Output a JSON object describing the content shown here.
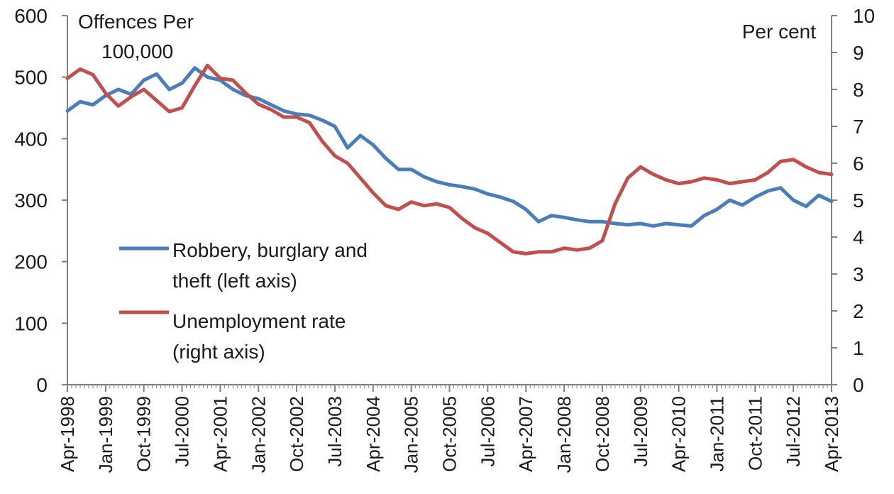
{
  "chart_data": {
    "type": "line",
    "left_axis": {
      "ylim": [
        0,
        600
      ],
      "ticks": [
        "0",
        "100",
        "200",
        "300",
        "400",
        "500",
        "600"
      ],
      "title_line1": "Offences Per",
      "title_line2": "100,000"
    },
    "right_axis": {
      "ylim": [
        0,
        10
      ],
      "ticks": [
        "0",
        "1",
        "2",
        "3",
        "4",
        "5",
        "6",
        "7",
        "8",
        "9",
        "10"
      ],
      "title": "Per cent"
    },
    "x_tick_labels": [
      "Apr-1998",
      "Jan-1999",
      "Oct-1999",
      "Jul-2000",
      "Apr-2001",
      "Jan-2002",
      "Oct-2002",
      "Jul-2003",
      "Apr-2004",
      "Jan-2005",
      "Oct-2005",
      "Jul-2006",
      "Apr-2007",
      "Jan-2008",
      "Oct-2008",
      "Jul-2009",
      "Apr-2010",
      "Jan-2011",
      "Oct-2011",
      "Jul-2012",
      "Apr-2013"
    ],
    "grid": false,
    "legend_position": "left",
    "series": [
      {
        "name_line1": "Robbery, burglary and",
        "name_line2": "theft (left axis)",
        "axis": "left",
        "color": "#4a7ebb",
        "x": [
          "1998-04",
          "1998-07",
          "1998-10",
          "1999-01",
          "1999-04",
          "1999-07",
          "1999-10",
          "2000-01",
          "2000-04",
          "2000-07",
          "2000-10",
          "2001-01",
          "2001-04",
          "2001-07",
          "2001-10",
          "2002-01",
          "2002-04",
          "2002-07",
          "2002-10",
          "2003-01",
          "2003-04",
          "2003-07",
          "2003-10",
          "2004-01",
          "2004-04",
          "2004-07",
          "2004-10",
          "2005-01",
          "2005-04",
          "2005-07",
          "2005-10",
          "2006-01",
          "2006-04",
          "2006-07",
          "2006-10",
          "2007-01",
          "2007-04",
          "2007-07",
          "2007-10",
          "2008-01",
          "2008-04",
          "2008-07",
          "2008-10",
          "2009-01",
          "2009-04",
          "2009-07",
          "2009-10",
          "2010-01",
          "2010-04",
          "2010-07",
          "2010-10",
          "2011-01",
          "2011-04",
          "2011-07",
          "2011-10",
          "2012-01",
          "2012-04",
          "2012-07",
          "2012-10",
          "2013-01",
          "2013-04"
        ],
        "values": [
          445,
          460,
          455,
          470,
          480,
          472,
          495,
          505,
          480,
          490,
          515,
          500,
          495,
          480,
          470,
          465,
          455,
          445,
          440,
          438,
          430,
          420,
          385,
          405,
          390,
          368,
          350,
          350,
          338,
          330,
          325,
          322,
          318,
          310,
          305,
          298,
          285,
          265,
          275,
          272,
          268,
          265,
          265,
          262,
          260,
          262,
          258,
          262,
          260,
          258,
          275,
          285,
          300,
          292,
          305,
          315,
          320,
          300,
          290,
          308,
          298
        ]
      },
      {
        "name_line1": "Unemployment rate",
        "name_line2": "(right axis)",
        "axis": "right",
        "color": "#c0504d",
        "x": [
          "1998-04",
          "1998-07",
          "1998-10",
          "1999-01",
          "1999-04",
          "1999-07",
          "1999-10",
          "2000-01",
          "2000-04",
          "2000-07",
          "2000-10",
          "2001-01",
          "2001-04",
          "2001-07",
          "2001-10",
          "2002-01",
          "2002-04",
          "2002-07",
          "2002-10",
          "2003-01",
          "2003-04",
          "2003-07",
          "2003-10",
          "2004-01",
          "2004-04",
          "2004-07",
          "2004-10",
          "2005-01",
          "2005-04",
          "2005-07",
          "2005-10",
          "2006-01",
          "2006-04",
          "2006-07",
          "2006-10",
          "2007-01",
          "2007-04",
          "2007-07",
          "2007-10",
          "2008-01",
          "2008-04",
          "2008-07",
          "2008-10",
          "2009-01",
          "2009-04",
          "2009-07",
          "2009-10",
          "2010-01",
          "2010-04",
          "2010-07",
          "2010-10",
          "2011-01",
          "2011-04",
          "2011-07",
          "2011-10",
          "2012-01",
          "2012-04",
          "2012-07",
          "2012-10",
          "2013-01",
          "2013-04"
        ],
        "values": [
          8.3,
          8.55,
          8.4,
          7.9,
          7.55,
          7.8,
          8.0,
          7.7,
          7.4,
          7.5,
          8.1,
          8.65,
          8.3,
          8.25,
          7.9,
          7.6,
          7.45,
          7.25,
          7.25,
          7.1,
          6.6,
          6.2,
          6.0,
          5.6,
          5.2,
          4.85,
          4.75,
          4.95,
          4.85,
          4.9,
          4.8,
          4.5,
          4.25,
          4.1,
          3.85,
          3.6,
          3.55,
          3.6,
          3.6,
          3.7,
          3.65,
          3.7,
          3.9,
          4.9,
          5.6,
          5.9,
          5.7,
          5.55,
          5.45,
          5.5,
          5.6,
          5.55,
          5.45,
          5.5,
          5.55,
          5.75,
          6.05,
          6.1,
          5.9,
          5.75,
          5.7
        ]
      }
    ]
  }
}
